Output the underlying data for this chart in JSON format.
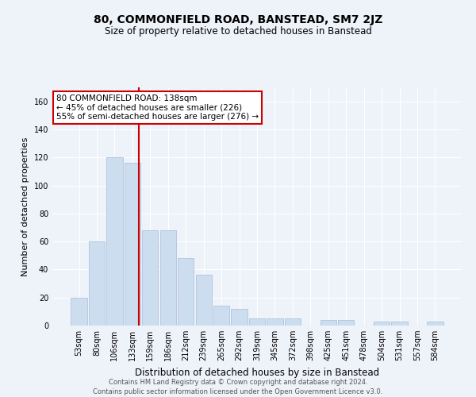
{
  "title": "80, COMMONFIELD ROAD, BANSTEAD, SM7 2JZ",
  "subtitle": "Size of property relative to detached houses in Banstead",
  "xlabel": "Distribution of detached houses by size in Banstead",
  "ylabel": "Number of detached properties",
  "bar_color": "#ccddf0",
  "bar_edgecolor": "#aabbd8",
  "vline_color": "#cc0000",
  "bins": [
    "53sqm",
    "80sqm",
    "106sqm",
    "133sqm",
    "159sqm",
    "186sqm",
    "212sqm",
    "239sqm",
    "265sqm",
    "292sqm",
    "319sqm",
    "345sqm",
    "372sqm",
    "398sqm",
    "425sqm",
    "451sqm",
    "478sqm",
    "504sqm",
    "531sqm",
    "557sqm",
    "584sqm"
  ],
  "values": [
    20,
    60,
    120,
    116,
    68,
    68,
    48,
    36,
    14,
    12,
    5,
    5,
    5,
    0,
    4,
    4,
    0,
    3,
    3,
    0,
    3
  ],
  "vline_x_index": 3.38,
  "ylim": [
    0,
    170
  ],
  "yticks": [
    0,
    20,
    40,
    60,
    80,
    100,
    120,
    140,
    160
  ],
  "annotation_text_line1": "80 COMMONFIELD ROAD: 138sqm",
  "annotation_text_line2": "← 45% of detached houses are smaller (226)",
  "annotation_text_line3": "55% of semi-detached houses are larger (276) →",
  "footer1": "Contains HM Land Registry data © Crown copyright and database right 2024.",
  "footer2": "Contains public sector information licensed under the Open Government Licence v3.0.",
  "bg_color": "#eef2f9",
  "grid_color": "#ffffff",
  "title_fontsize": 10,
  "subtitle_fontsize": 8.5,
  "ylabel_fontsize": 8,
  "xlabel_fontsize": 8.5,
  "tick_fontsize": 7,
  "footer_fontsize": 6,
  "annot_fontsize": 7.5
}
